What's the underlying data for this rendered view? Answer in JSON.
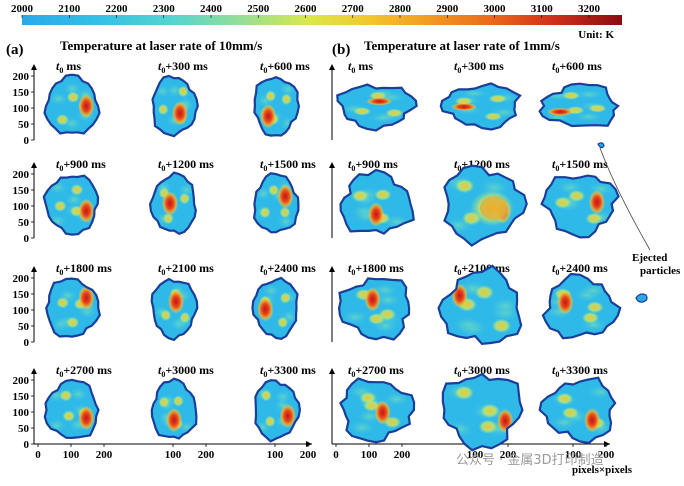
{
  "colorbar": {
    "ticks": [
      "2000",
      "2100",
      "2200",
      "2300",
      "2400",
      "2500",
      "2600",
      "2700",
      "2800",
      "2900",
      "3000",
      "3100",
      "3200"
    ],
    "unit_label": "Unit: K",
    "colors": [
      "#2aa8e8",
      "#35c8e0",
      "#5fd6c6",
      "#a6e28a",
      "#e2ea45",
      "#f3c22c",
      "#f08a1f",
      "#e8541a",
      "#c8201a",
      "#8a0c10"
    ]
  },
  "panels": {
    "a": {
      "label": "(a)",
      "title": "Temperature at laser rate of 10mm/s"
    },
    "b": {
      "label": "(b)",
      "title": "Temperature at laser rate of 1mm/s"
    }
  },
  "time_rows": [
    [
      {
        "pre": "t",
        "sub": "0",
        "post": " ms"
      },
      {
        "pre": "t",
        "sub": "0",
        "post": "+300 ms"
      },
      {
        "pre": "t",
        "sub": "0",
        "post": "+600 ms"
      }
    ],
    [
      {
        "pre": "t",
        "sub": "0",
        "post": "+900 ms"
      },
      {
        "pre": "t",
        "sub": "0",
        "post": "+1200 ms"
      },
      {
        "pre": "t",
        "sub": "0",
        "post": "+1500 ms"
      }
    ],
    [
      {
        "pre": "t",
        "sub": "0",
        "post": "+1800 ms"
      },
      {
        "pre": "t",
        "sub": "0",
        "post": "+2100 ms"
      },
      {
        "pre": "t",
        "sub": "0",
        "post": "+2400 ms"
      }
    ],
    [
      {
        "pre": "t",
        "sub": "0",
        "post": "+2700 ms"
      },
      {
        "pre": "t",
        "sub": "0",
        "post": "+3000 ms"
      },
      {
        "pre": "t",
        "sub": "0",
        "post": "+3300 ms"
      }
    ]
  ],
  "y_ticks": [
    "200",
    "150",
    "100",
    "50",
    "0"
  ],
  "x_ticks": [
    "0",
    "100",
    "200"
  ],
  "annotation": "Ejected particles",
  "axis_unit": "pixels×pixels",
  "watermark": "公众号 · 金属3D打印制造"
}
